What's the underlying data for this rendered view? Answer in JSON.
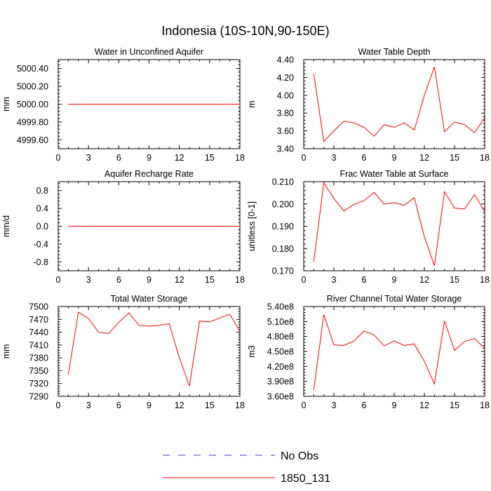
{
  "title": "Indonesia (10S-10N,90-150E)",
  "colors": {
    "obs": "#3b3bd6",
    "model": "#ff0000",
    "axis": "#000000"
  },
  "legend": {
    "obs_label": "No Obs",
    "model_label": "1850_131"
  },
  "chart_data": [
    {
      "type": "line",
      "title": "Water in Unconfined Aquifer",
      "ylabel": "mm",
      "xlim": [
        0,
        18
      ],
      "xticks": [
        0,
        3,
        6,
        9,
        12,
        15,
        18
      ],
      "xtick_labels": [
        "0",
        "3",
        "6",
        "9",
        "12",
        "15",
        "18"
      ],
      "ylim": [
        4999.5,
        5000.5
      ],
      "yticks": [
        4999.6,
        4999.8,
        5000.0,
        5000.2,
        5000.4
      ],
      "ytick_labels": [
        "4999.60",
        "4999.80",
        "5000.00",
        "5000.20",
        "5000.40"
      ],
      "x": [
        1,
        2,
        3,
        4,
        5,
        6,
        7,
        8,
        9,
        10,
        11,
        12,
        13,
        14,
        15,
        16,
        17,
        18
      ],
      "series": [
        {
          "name": "1850_131",
          "values": [
            5000,
            5000,
            5000,
            5000,
            5000,
            5000,
            5000,
            5000,
            5000,
            5000,
            5000,
            5000,
            5000,
            5000,
            5000,
            5000,
            5000,
            5000
          ]
        }
      ]
    },
    {
      "type": "line",
      "title": "Water Table Depth",
      "ylabel": "m",
      "xlim": [
        0,
        18
      ],
      "xticks": [
        0,
        3,
        6,
        9,
        12,
        15,
        18
      ],
      "xtick_labels": [
        "0",
        "3",
        "6",
        "9",
        "12",
        "15",
        "18"
      ],
      "ylim": [
        3.4,
        4.4
      ],
      "yticks": [
        3.4,
        3.6,
        3.8,
        4.0,
        4.2,
        4.4
      ],
      "ytick_labels": [
        "3.40",
        "3.60",
        "3.80",
        "4.00",
        "4.20",
        "4.40"
      ],
      "x": [
        1,
        2,
        3,
        4,
        5,
        6,
        7,
        8,
        9,
        10,
        11,
        12,
        13,
        14,
        15,
        16,
        17,
        18
      ],
      "series": [
        {
          "name": "1850_131",
          "values": [
            4.24,
            3.48,
            3.6,
            3.71,
            3.69,
            3.64,
            3.54,
            3.67,
            3.64,
            3.69,
            3.61,
            4.0,
            4.32,
            3.59,
            3.7,
            3.67,
            3.58,
            3.75
          ]
        }
      ]
    },
    {
      "type": "line",
      "title": "Aquifer Recharge Rate",
      "ylabel": "mm/d",
      "xlim": [
        0,
        18
      ],
      "xticks": [
        0,
        3,
        6,
        9,
        12,
        15,
        18
      ],
      "xtick_labels": [
        "0",
        "3",
        "6",
        "9",
        "12",
        "15",
        "18"
      ],
      "ylim": [
        -1.0,
        1.0
      ],
      "yticks": [
        -0.8,
        -0.4,
        0.0,
        0.4,
        0.8
      ],
      "ytick_labels": [
        "-0.8",
        "-0.4",
        "0.0",
        "0.4",
        "0.8"
      ],
      "x": [
        1,
        2,
        3,
        4,
        5,
        6,
        7,
        8,
        9,
        10,
        11,
        12,
        13,
        14,
        15,
        16,
        17,
        18
      ],
      "series": [
        {
          "name": "1850_131",
          "values": [
            0,
            0,
            0,
            0,
            0,
            0,
            0,
            0,
            0,
            0,
            0,
            0,
            0,
            0,
            0,
            0,
            0,
            0
          ]
        }
      ]
    },
    {
      "type": "line",
      "title": "Frac Water Table at Surface",
      "ylabel": "unitless [0-1]",
      "xlim": [
        0,
        18
      ],
      "xticks": [
        0,
        3,
        6,
        9,
        12,
        15,
        18
      ],
      "xtick_labels": [
        "0",
        "3",
        "6",
        "9",
        "12",
        "15",
        "18"
      ],
      "ylim": [
        0.17,
        0.21
      ],
      "yticks": [
        0.17,
        0.18,
        0.19,
        0.2,
        0.21
      ],
      "ytick_labels": [
        "0.170",
        "0.180",
        "0.190",
        "0.200",
        "0.210"
      ],
      "x": [
        1,
        2,
        3,
        4,
        5,
        6,
        7,
        8,
        9,
        10,
        11,
        12,
        13,
        14,
        15,
        16,
        17,
        18
      ],
      "series": [
        {
          "name": "1850_131",
          "values": [
            0.174,
            0.2095,
            0.2025,
            0.1968,
            0.1998,
            0.2015,
            0.2052,
            0.1999,
            0.2006,
            0.1994,
            0.2028,
            0.1853,
            0.1722,
            0.2055,
            0.1981,
            0.1978,
            0.2042,
            0.1965
          ]
        }
      ]
    },
    {
      "type": "line",
      "title": "Total Water Storage",
      "ylabel": "mm",
      "xlim": [
        0,
        18
      ],
      "xticks": [
        0,
        3,
        6,
        9,
        12,
        15,
        18
      ],
      "xtick_labels": [
        "0",
        "3",
        "6",
        "9",
        "12",
        "15",
        "18"
      ],
      "ylim": [
        7290,
        7500
      ],
      "yticks": [
        7290,
        7320,
        7350,
        7380,
        7410,
        7440,
        7470,
        7500
      ],
      "ytick_labels": [
        "7290",
        "7320",
        "7350",
        "7380",
        "7410",
        "7440",
        "7470",
        "7500"
      ],
      "x": [
        1,
        2,
        3,
        4,
        5,
        6,
        7,
        8,
        9,
        10,
        11,
        12,
        13,
        14,
        15,
        16,
        17,
        18
      ],
      "series": [
        {
          "name": "1850_131",
          "values": [
            7341,
            7487,
            7472,
            7440,
            7437,
            7463,
            7485,
            7456,
            7454,
            7456,
            7460,
            7380,
            7314,
            7466,
            7464,
            7473,
            7482,
            7442
          ]
        }
      ]
    },
    {
      "type": "line",
      "title": "River Channel Total Water Storage",
      "ylabel": "m3",
      "xlim": [
        0,
        18
      ],
      "xticks": [
        0,
        3,
        6,
        9,
        12,
        15,
        18
      ],
      "xtick_labels": [
        "0",
        "3",
        "6",
        "9",
        "12",
        "15",
        "18"
      ],
      "ylim": [
        360000000,
        540000000
      ],
      "yticks": [
        360000000,
        390000000,
        420000000,
        450000000,
        480000000,
        510000000,
        540000000
      ],
      "ytick_labels": [
        "3.60e8",
        "3.90e8",
        "4.20e8",
        "4.50e8",
        "4.80e8",
        "5.10e8",
        "5.40e8"
      ],
      "x": [
        1,
        2,
        3,
        4,
        5,
        6,
        7,
        8,
        9,
        10,
        11,
        12,
        13,
        14,
        15,
        16,
        17,
        18
      ],
      "series": [
        {
          "name": "1850_131",
          "values": [
            373000000,
            524000000,
            463000000,
            462000000,
            471000000,
            491000000,
            483000000,
            461000000,
            471000000,
            462000000,
            465000000,
            430000000,
            385000000,
            511000000,
            452000000,
            470000000,
            476000000,
            456000000
          ]
        }
      ]
    }
  ]
}
